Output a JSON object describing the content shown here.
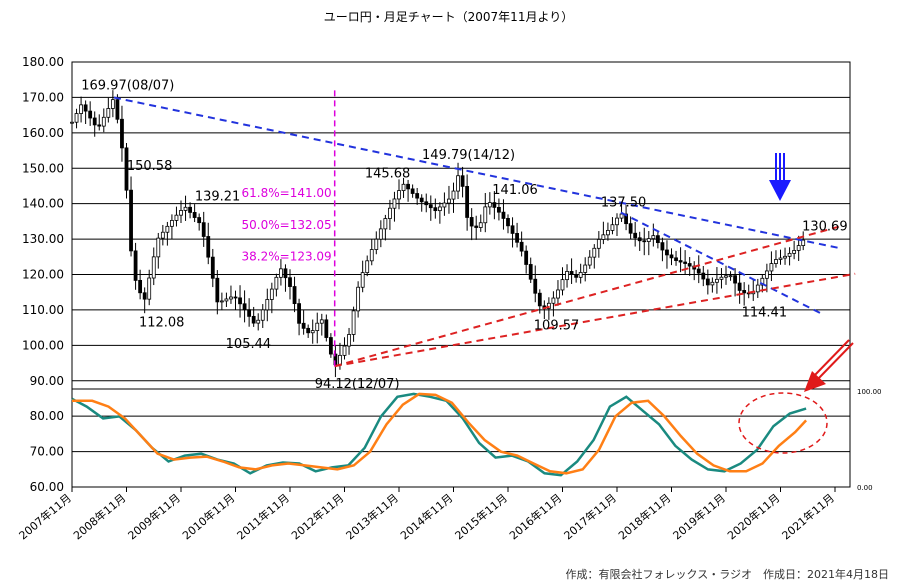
{
  "title": "ユーロ円・月足チャート（2007年11月より）",
  "credit": "作成：有限会社フォレックス・ラジオ　作成日：2021年4月18日",
  "chart_data": [
    {
      "type": "candlestick",
      "ylim": [
        60,
        180
      ],
      "y_ticks": [
        "180.00",
        "170.00",
        "160.00",
        "150.00",
        "140.00",
        "130.00",
        "120.00",
        "110.00",
        "100.00",
        "90.00",
        "80.00",
        "70.00",
        "60.00"
      ],
      "x_ticks": [
        "2007年11月",
        "2008年11月",
        "2009年11月",
        "2010年11月",
        "2011年11月",
        "2012年11月",
        "2013年11月",
        "2014年11月",
        "2015年11月",
        "2016年11月",
        "2017年11月",
        "2018年11月",
        "2019年11月",
        "2020年11月",
        "2021年11月"
      ],
      "grid": true,
      "price_path": [
        [
          2007.83,
          163
        ],
        [
          2008.0,
          168
        ],
        [
          2008.3,
          161
        ],
        [
          2008.6,
          169.97
        ],
        [
          2008.8,
          150.58
        ],
        [
          2008.9,
          128
        ],
        [
          2009.0,
          118
        ],
        [
          2009.15,
          112.08
        ],
        [
          2009.4,
          130
        ],
        [
          2009.7,
          136
        ],
        [
          2009.9,
          139.21
        ],
        [
          2010.2,
          134
        ],
        [
          2010.4,
          120
        ],
        [
          2010.5,
          112
        ],
        [
          2010.8,
          114
        ],
        [
          2011.0,
          110
        ],
        [
          2011.2,
          105.44
        ],
        [
          2011.5,
          116
        ],
        [
          2011.65,
          122
        ],
        [
          2011.85,
          116
        ],
        [
          2012.0,
          106
        ],
        [
          2012.2,
          103
        ],
        [
          2012.4,
          108
        ],
        [
          2012.55,
          99
        ],
        [
          2012.65,
          94.12
        ],
        [
          2012.9,
          102
        ],
        [
          2013.1,
          118
        ],
        [
          2013.3,
          126
        ],
        [
          2013.5,
          133
        ],
        [
          2013.7,
          140
        ],
        [
          2013.9,
          145.68
        ],
        [
          2014.2,
          141
        ],
        [
          2014.5,
          138
        ],
        [
          2014.8,
          142
        ],
        [
          2014.95,
          149.79
        ],
        [
          2015.1,
          134
        ],
        [
          2015.3,
          133
        ],
        [
          2015.45,
          141.06
        ],
        [
          2015.7,
          137
        ],
        [
          2015.9,
          132
        ],
        [
          2016.1,
          126
        ],
        [
          2016.3,
          116
        ],
        [
          2016.45,
          109.57
        ],
        [
          2016.7,
          114
        ],
        [
          2016.9,
          121
        ],
        [
          2017.1,
          119
        ],
        [
          2017.3,
          124
        ],
        [
          2017.5,
          130
        ],
        [
          2017.7,
          133
        ],
        [
          2017.9,
          137.5
        ],
        [
          2018.1,
          131
        ],
        [
          2018.3,
          129
        ],
        [
          2018.5,
          131
        ],
        [
          2018.7,
          126
        ],
        [
          2018.9,
          124
        ],
        [
          2019.1,
          123
        ],
        [
          2019.3,
          121
        ],
        [
          2019.5,
          117
        ],
        [
          2019.7,
          119
        ],
        [
          2019.9,
          120
        ],
        [
          2020.1,
          115
        ],
        [
          2020.3,
          114.41
        ],
        [
          2020.5,
          119
        ],
        [
          2020.7,
          124
        ],
        [
          2020.9,
          125
        ],
        [
          2021.1,
          127
        ],
        [
          2021.3,
          130.69
        ]
      ],
      "labels": [
        {
          "text": "169.97(08/07)",
          "x": 2008.55,
          "y": 169.97
        },
        {
          "text": "150.58",
          "x": 2008.8,
          "y": 150.58
        },
        {
          "text": "139.21",
          "x": 2009.9,
          "y": 139.21
        },
        {
          "text": "112.08",
          "x": 2009.15,
          "y": 112.08
        },
        {
          "text": "105.44",
          "x": 2011.2,
          "y": 105.44
        },
        {
          "text": "94.12(12/07)",
          "x": 2012.65,
          "y": 94.12
        },
        {
          "text": "145.68",
          "x": 2013.9,
          "y": 145.68
        },
        {
          "text": "149.79(14/12)",
          "x": 2014.95,
          "y": 149.79
        },
        {
          "text": "141.06",
          "x": 2015.45,
          "y": 141.06
        },
        {
          "text": "109.57",
          "x": 2016.45,
          "y": 109.57
        },
        {
          "text": "137.50",
          "x": 2017.9,
          "y": 137.5
        },
        {
          "text": "114.41",
          "x": 2020.3,
          "y": 114.41
        },
        {
          "text": "130.69",
          "x": 2021.3,
          "y": 130.69
        }
      ],
      "fib_labels": [
        {
          "text": "61.8%=141.00",
          "y": 141.0
        },
        {
          "text": "50.0%=132.05",
          "y": 132.05
        },
        {
          "text": "38.2%=123.09",
          "y": 123.09
        }
      ],
      "fib_line_x": 2012.65,
      "trendlines": [
        {
          "color": "#2233dd",
          "from": [
            2008.6,
            169.97
          ],
          "to": [
            2021.9,
            127.5
          ]
        },
        {
          "color": "#2233dd",
          "from": [
            2017.9,
            137.5
          ],
          "to": [
            2021.6,
            108.8
          ]
        },
        {
          "color": "#dd2222",
          "from": [
            2012.65,
            94.12
          ],
          "to": [
            2021.9,
            133.5
          ]
        },
        {
          "color": "#dd2222",
          "from": [
            2012.65,
            94.12
          ],
          "to": [
            2022.2,
            120.2
          ]
        }
      ],
      "colors": {
        "candles": "#000000",
        "trend_blue": "#2233dd",
        "trend_red": "#dd2222",
        "fib": "#dd00dd",
        "grid": "#000000"
      }
    },
    {
      "type": "line",
      "panel": "oscillator",
      "ylim": [
        0,
        100
      ],
      "right_ticks": [
        "100.00",
        "0.00"
      ],
      "series": [
        {
          "color": "#1a8a80",
          "x": [
            2007.83,
            2008.1,
            2008.4,
            2008.7,
            2009.0,
            2009.3,
            2009.6,
            2009.9,
            2010.2,
            2010.5,
            2010.8,
            2011.1,
            2011.4,
            2011.7,
            2012.0,
            2012.3,
            2012.6,
            2012.9,
            2013.2,
            2013.5,
            2013.8,
            2014.1,
            2014.4,
            2014.7,
            2015.0,
            2015.3,
            2015.6,
            2015.9,
            2016.2,
            2016.5,
            2016.8,
            2017.1,
            2017.4,
            2017.7,
            2018.0,
            2018.3,
            2018.6,
            2018.9,
            2019.2,
            2019.5,
            2019.8,
            2020.1,
            2020.4,
            2020.7,
            2021.0,
            2021.3
          ],
          "y": [
            90,
            82,
            70,
            72,
            58,
            40,
            26,
            32,
            34,
            28,
            24,
            14,
            22,
            25,
            24,
            16,
            20,
            22,
            40,
            72,
            92,
            95,
            92,
            88,
            70,
            45,
            30,
            32,
            26,
            14,
            12,
            26,
            48,
            82,
            92,
            78,
            64,
            42,
            28,
            18,
            16,
            24,
            38,
            62,
            75,
            80
          ]
        },
        {
          "color": "#ff7f15",
          "x": [
            2007.83,
            2008.2,
            2008.5,
            2008.8,
            2009.1,
            2009.4,
            2009.7,
            2010.0,
            2010.3,
            2010.6,
            2010.9,
            2011.2,
            2011.5,
            2011.8,
            2012.1,
            2012.4,
            2012.7,
            2013.0,
            2013.3,
            2013.6,
            2013.9,
            2014.2,
            2014.5,
            2014.8,
            2015.1,
            2015.4,
            2015.7,
            2016.0,
            2016.3,
            2016.6,
            2016.9,
            2017.2,
            2017.5,
            2017.8,
            2018.1,
            2018.4,
            2018.7,
            2019.0,
            2019.3,
            2019.6,
            2019.9,
            2020.2,
            2020.5,
            2020.8,
            2021.1,
            2021.3
          ],
          "y": [
            88,
            88,
            82,
            70,
            52,
            34,
            28,
            30,
            31,
            26,
            20,
            18,
            22,
            24,
            22,
            20,
            18,
            22,
            36,
            64,
            84,
            95,
            94,
            86,
            66,
            48,
            36,
            32,
            24,
            16,
            14,
            18,
            38,
            72,
            86,
            88,
            72,
            52,
            34,
            22,
            16,
            16,
            24,
            42,
            56,
            68
          ]
        }
      ]
    }
  ]
}
